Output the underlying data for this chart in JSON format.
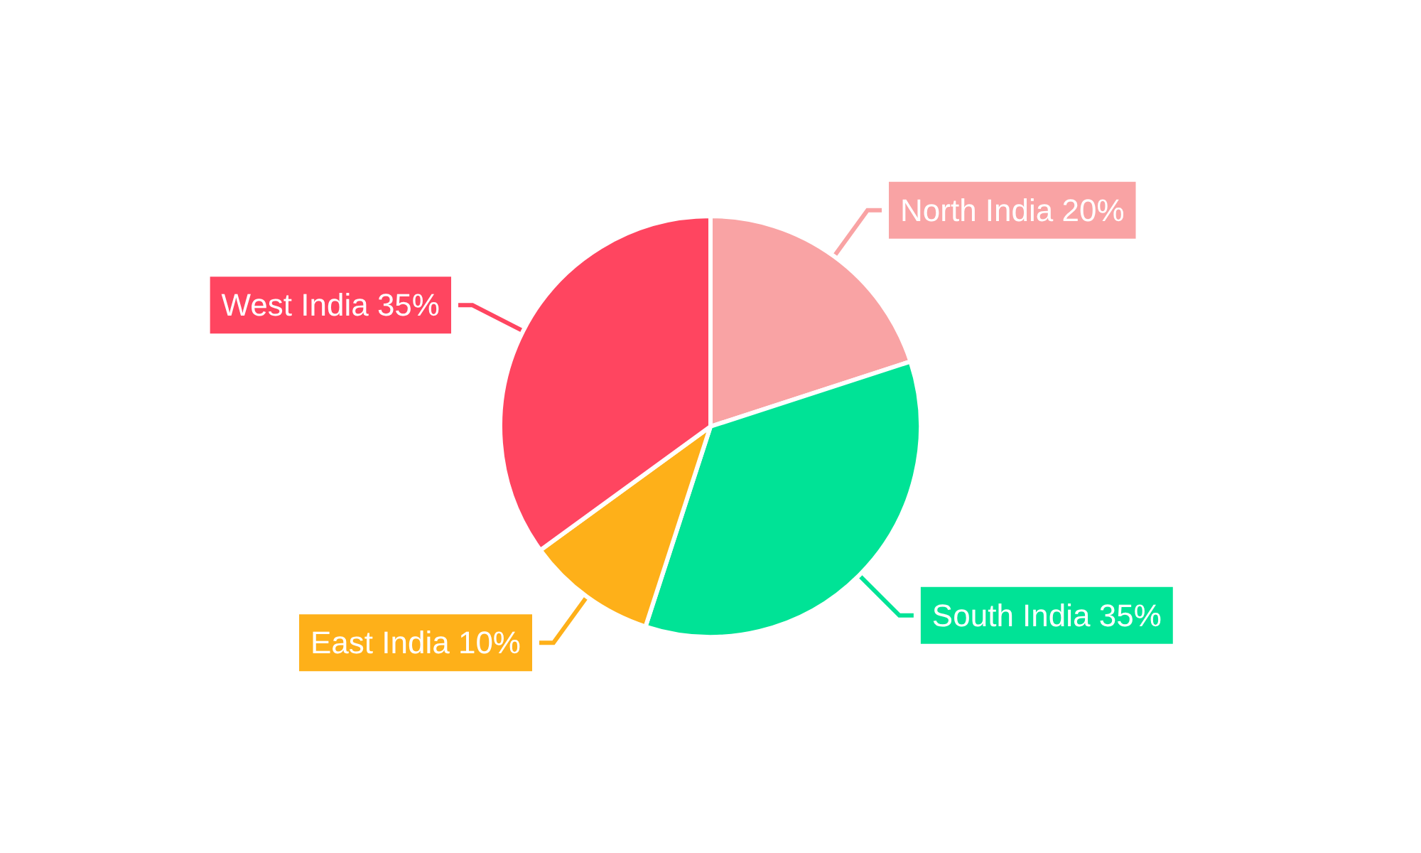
{
  "chart_data": {
    "type": "pie",
    "categories": [
      "North India",
      "South India",
      "East India",
      "West India"
    ],
    "values": [
      20,
      35,
      10,
      35
    ],
    "value_labels": [
      "20%",
      "35%",
      "10%",
      "35%"
    ],
    "colors": [
      "#f9a3a4",
      "#00e396",
      "#feb019",
      "#ff4560"
    ],
    "legend": false
  }
}
